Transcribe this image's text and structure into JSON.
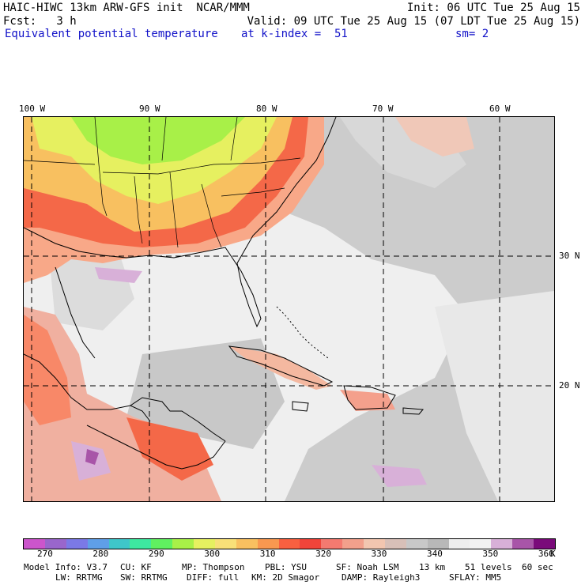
{
  "header": {
    "line1_left": "HAIC-HIWC 13km ARW-GFS init  NCAR/MMM",
    "line1_right": "Init: 06 UTC Tue 25 Aug 15",
    "line2_left": "Fcst:   3 h",
    "line2_right": "Valid: 09 UTC Tue 25 Aug 15 (07 LDT Tue 25 Aug 15)",
    "field_name": "Equivalent potential temperature",
    "level_label": "at k-index =  51",
    "smooth_label": "sm= 2"
  },
  "map": {
    "lon_labels": [
      "100 W",
      "90 W",
      "80 W",
      "70 W",
      "60 W"
    ],
    "lat_labels": [
      "30 N",
      "20 N"
    ]
  },
  "colorbar": {
    "colors": [
      "#cc55cc",
      "#9966cc",
      "#7b79e6",
      "#5f9fe8",
      "#3fc6c9",
      "#3ee8a0",
      "#60f060",
      "#a8f048",
      "#e6f060",
      "#f8e078",
      "#f8c060",
      "#f89850",
      "#f86040",
      "#f0443a",
      "#f47a70",
      "#f2a08c",
      "#f2c6b0",
      "#d8c0b8",
      "#c8c8c8",
      "#b8b8b8",
      "#eeeeee",
      "#f2f2f2",
      "#d8b0d8",
      "#a855a8",
      "#7a0a7a"
    ],
    "tick_labels": [
      "270",
      "280",
      "290",
      "300",
      "310",
      "320",
      "330",
      "340",
      "350",
      "360"
    ],
    "unit": "K"
  },
  "footer": {
    "line1": [
      "Model Info: V3.7",
      "CU: KF",
      "MP: Thompson",
      "PBL: YSU",
      "SF: Noah LSM",
      "13 km",
      "51 levels",
      "60 sec"
    ],
    "line2": [
      "LW: RRTMG",
      "SW: RRTMG",
      "DIFF: full",
      "KM: 2D Smagor",
      "DAMP: Rayleigh3",
      "SFLAY: MM5"
    ]
  }
}
